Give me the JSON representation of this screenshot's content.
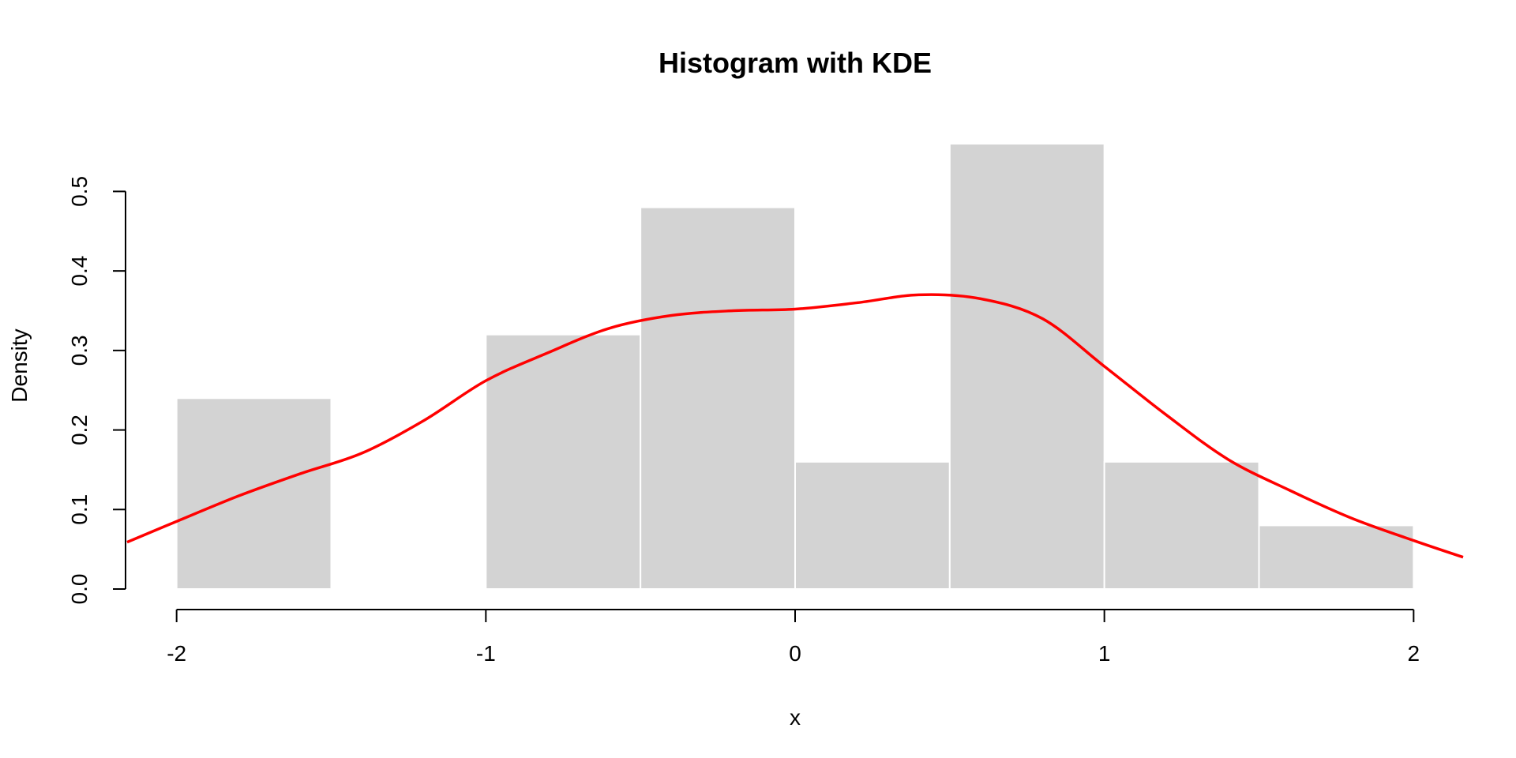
{
  "chart_data": {
    "type": "bar",
    "title": "Histogram with KDE",
    "xlabel": "x",
    "ylabel": "Density",
    "xlim": [
      -2.16,
      2.16
    ],
    "ylim": [
      0,
      0.56
    ],
    "x_ticks": [
      -2,
      -1,
      0,
      1,
      2
    ],
    "x_tick_labels": [
      "-2",
      "-1",
      "0",
      "1",
      "2"
    ],
    "y_ticks": [
      0.0,
      0.1,
      0.2,
      0.3,
      0.4,
      0.5
    ],
    "y_tick_labels": [
      "0.0",
      "0.1",
      "0.2",
      "0.3",
      "0.4",
      "0.5"
    ],
    "grid": false,
    "legend": "none",
    "bins": [
      {
        "start": -2.0,
        "end": -1.5,
        "density": 0.24
      },
      {
        "start": -1.5,
        "end": -1.0,
        "density": 0.0
      },
      {
        "start": -1.0,
        "end": -0.5,
        "density": 0.32
      },
      {
        "start": -0.5,
        "end": 0.0,
        "density": 0.48
      },
      {
        "start": 0.0,
        "end": 0.5,
        "density": 0.16
      },
      {
        "start": 0.5,
        "end": 1.0,
        "density": 0.56
      },
      {
        "start": 1.0,
        "end": 1.5,
        "density": 0.16
      },
      {
        "start": 1.5,
        "end": 2.0,
        "density": 0.08
      }
    ],
    "series": [
      {
        "type": "line",
        "x": [
          -2.16,
          -2.0,
          -1.8,
          -1.6,
          -1.4,
          -1.2,
          -1.0,
          -0.8,
          -0.6,
          -0.4,
          -0.2,
          0.0,
          0.2,
          0.4,
          0.6,
          0.8,
          1.0,
          1.2,
          1.4,
          1.6,
          1.8,
          2.0,
          2.16
        ],
        "y": [
          0.059,
          0.085,
          0.117,
          0.145,
          0.171,
          0.212,
          0.262,
          0.297,
          0.328,
          0.344,
          0.35,
          0.352,
          0.36,
          0.37,
          0.365,
          0.34,
          0.28,
          0.219,
          0.163,
          0.124,
          0.089,
          0.061,
          0.04
        ]
      }
    ],
    "colors": {
      "bars": "#d3d3d3",
      "bar_border": "#ffffff",
      "kde": "#ff0000"
    }
  }
}
